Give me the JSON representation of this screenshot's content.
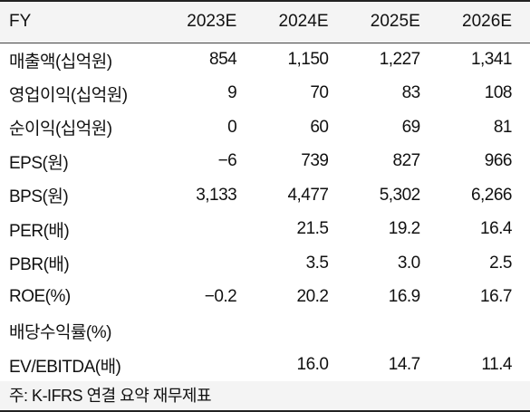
{
  "header": {
    "fy": "FY",
    "years": [
      "2023E",
      "2024E",
      "2025E",
      "2026E"
    ]
  },
  "rows": [
    {
      "label": "매출액(십억원)",
      "values": [
        "854",
        "1,150",
        "1,227",
        "1,341"
      ]
    },
    {
      "label": "영업이익(십억원)",
      "values": [
        "9",
        "70",
        "83",
        "108"
      ]
    },
    {
      "label": "순이익(십억원)",
      "values": [
        "0",
        "60",
        "69",
        "81"
      ]
    },
    {
      "label": "EPS(원)",
      "values": [
        "−6",
        "739",
        "827",
        "966"
      ]
    },
    {
      "label": "BPS(원)",
      "values": [
        "3,133",
        "4,477",
        "5,302",
        "6,266"
      ]
    },
    {
      "label": "PER(배)",
      "values": [
        "",
        "21.5",
        "19.2",
        "16.4"
      ]
    },
    {
      "label": "PBR(배)",
      "values": [
        "",
        "3.5",
        "3.0",
        "2.5"
      ]
    },
    {
      "label": "ROE(%)",
      "values": [
        "−0.2",
        "20.2",
        "16.9",
        "16.7"
      ]
    },
    {
      "label": "배당수익률(%)",
      "values": [
        "",
        "",
        "",
        ""
      ]
    },
    {
      "label": "EV/EBITDA(배)",
      "values": [
        "",
        "16.0",
        "14.7",
        "11.4"
      ]
    }
  ],
  "footnote": "주: K-IFRS 연결 요약 재무제표"
}
